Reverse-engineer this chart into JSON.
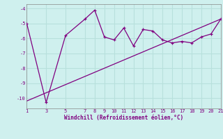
{
  "xlabel": "Windchill (Refroidissement éolien,°C)",
  "bg_color": "#cff0ee",
  "line_color": "#800080",
  "grid_color": "#b8e0dc",
  "axis_color": "#800080",
  "jagged_x": [
    1,
    3,
    5,
    7,
    8,
    9,
    10,
    11,
    12,
    13,
    14,
    15,
    16,
    17,
    18,
    19,
    20,
    21
  ],
  "jagged_y": [
    -5.0,
    -10.3,
    -5.8,
    -4.7,
    -4.1,
    -5.9,
    -6.1,
    -5.3,
    -6.5,
    -5.4,
    -5.5,
    -6.1,
    -6.3,
    -6.2,
    -6.3,
    -5.9,
    -5.7,
    -4.7
  ],
  "trend_x": [
    1,
    21
  ],
  "trend_y": [
    -10.2,
    -4.7
  ],
  "xlim": [
    1,
    21
  ],
  "ylim": [
    -10.7,
    -3.7
  ],
  "yticks": [
    -10,
    -9,
    -8,
    -7,
    -6,
    -5,
    -4
  ],
  "xticks": [
    1,
    3,
    5,
    7,
    8,
    9,
    10,
    11,
    12,
    13,
    14,
    15,
    16,
    17,
    18,
    19,
    20,
    21
  ]
}
